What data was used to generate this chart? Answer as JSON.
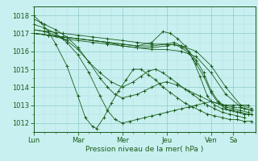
{
  "xlabel": "Pression niveau de la mer( hPa )",
  "bg_color": "#c8f0f0",
  "grid_color": "#a0d0d0",
  "line_color": "#1a5c1a",
  "ylim": [
    1011.5,
    1018.5
  ],
  "xlim": [
    0,
    120
  ],
  "yticks": [
    1012,
    1013,
    1014,
    1015,
    1016,
    1017,
    1018
  ],
  "day_labels": [
    "Lun",
    "Mar",
    "Mer",
    "Jeu",
    "Ven",
    "Sa"
  ],
  "day_positions": [
    0,
    24,
    48,
    72,
    96,
    108
  ],
  "series": [
    {
      "xs": [
        0,
        4,
        8,
        12,
        18,
        24,
        28,
        32,
        34,
        38,
        42,
        46,
        50,
        54,
        58,
        62,
        66,
        70,
        74,
        78,
        82,
        86,
        90,
        94,
        98,
        102,
        106,
        110,
        114,
        118
      ],
      "ys": [
        1018.0,
        1017.6,
        1017.1,
        1016.4,
        1015.2,
        1013.5,
        1012.3,
        1011.8,
        1011.7,
        1012.3,
        1013.1,
        1013.8,
        1014.4,
        1015.0,
        1015.0,
        1014.7,
        1014.4,
        1014.0,
        1013.7,
        1013.4,
        1013.1,
        1012.9,
        1012.7,
        1012.5,
        1012.4,
        1012.3,
        1012.2,
        1012.2,
        1012.1,
        1012.1
      ]
    },
    {
      "xs": [
        0,
        6,
        12,
        18,
        24,
        30,
        36,
        40,
        44,
        48,
        52,
        56,
        60,
        64,
        68,
        72,
        76,
        80,
        84,
        88,
        92,
        96,
        100,
        104,
        108,
        112,
        116
      ],
      "ys": [
        1017.5,
        1017.3,
        1017.0,
        1016.5,
        1015.8,
        1014.8,
        1013.5,
        1012.7,
        1012.2,
        1012.0,
        1012.1,
        1012.2,
        1012.3,
        1012.4,
        1012.5,
        1012.6,
        1012.7,
        1012.8,
        1012.9,
        1013.0,
        1013.1,
        1013.2,
        1013.1,
        1013.0,
        1013.0,
        1013.0,
        1013.0
      ]
    },
    {
      "xs": [
        0,
        6,
        12,
        18,
        24,
        30,
        36,
        40,
        44,
        48,
        52,
        56,
        60,
        64,
        68,
        72,
        78,
        84,
        90,
        96,
        102,
        108,
        114,
        118
      ],
      "ys": [
        1017.2,
        1017.1,
        1016.9,
        1016.6,
        1016.1,
        1015.4,
        1014.5,
        1014.0,
        1013.6,
        1013.4,
        1013.5,
        1013.6,
        1013.8,
        1014.0,
        1014.2,
        1014.3,
        1014.1,
        1013.8,
        1013.5,
        1013.2,
        1013.0,
        1012.9,
        1012.8,
        1012.7
      ]
    },
    {
      "xs": [
        0,
        8,
        16,
        24,
        32,
        40,
        48,
        56,
        64,
        72,
        76,
        80,
        84,
        88,
        92,
        96,
        100,
        104,
        108,
        112,
        116
      ],
      "ys": [
        1017.0,
        1016.9,
        1016.8,
        1016.7,
        1016.6,
        1016.5,
        1016.4,
        1016.3,
        1016.3,
        1016.4,
        1016.5,
        1016.3,
        1016.0,
        1015.5,
        1014.8,
        1013.8,
        1013.2,
        1012.9,
        1012.8,
        1012.7,
        1012.6
      ]
    },
    {
      "xs": [
        0,
        8,
        16,
        24,
        32,
        40,
        48,
        56,
        64,
        72,
        76,
        80,
        84,
        88,
        92,
        96,
        100,
        104,
        108,
        112,
        116
      ],
      "ys": [
        1017.0,
        1016.9,
        1016.7,
        1016.6,
        1016.5,
        1016.4,
        1016.3,
        1016.2,
        1016.2,
        1016.3,
        1016.4,
        1016.2,
        1015.9,
        1015.3,
        1014.6,
        1013.7,
        1013.1,
        1012.8,
        1012.7,
        1012.6,
        1012.5
      ]
    },
    {
      "xs": [
        0,
        8,
        16,
        24,
        32,
        40,
        48,
        56,
        64,
        70,
        74,
        78,
        82,
        86,
        90,
        94,
        98,
        102,
        106,
        110,
        114,
        118
      ],
      "ys": [
        1017.0,
        1016.9,
        1016.8,
        1016.7,
        1016.6,
        1016.5,
        1016.4,
        1016.3,
        1016.5,
        1017.1,
        1017.0,
        1016.7,
        1016.3,
        1015.6,
        1014.6,
        1013.5,
        1013.0,
        1012.8,
        1012.7,
        1012.6,
        1012.5,
        1012.5
      ]
    },
    {
      "xs": [
        0,
        6,
        12,
        18,
        24,
        30,
        36,
        42,
        48,
        54,
        58,
        62,
        66,
        70,
        74,
        78,
        82,
        86,
        90,
        94,
        98,
        102,
        106,
        110,
        114
      ],
      "ys": [
        1017.8,
        1017.5,
        1017.2,
        1016.8,
        1016.2,
        1015.4,
        1014.8,
        1014.3,
        1014.0,
        1014.3,
        1014.6,
        1014.9,
        1015.0,
        1014.8,
        1014.5,
        1014.2,
        1013.9,
        1013.6,
        1013.3,
        1013.0,
        1012.8,
        1012.6,
        1012.5,
        1012.4,
        1012.3
      ]
    },
    {
      "xs": [
        0,
        8,
        16,
        24,
        32,
        40,
        48,
        56,
        64,
        72,
        80,
        88,
        96,
        104,
        112,
        118
      ],
      "ys": [
        1017.2,
        1017.1,
        1017.0,
        1016.9,
        1016.8,
        1016.7,
        1016.6,
        1016.5,
        1016.4,
        1016.4,
        1016.3,
        1016.0,
        1015.2,
        1014.0,
        1013.0,
        1012.8
      ]
    },
    {
      "xs": [
        0,
        8,
        16,
        24,
        32,
        40,
        48,
        56,
        64,
        72,
        80,
        88,
        96,
        104,
        112,
        118
      ],
      "ys": [
        1017.0,
        1016.9,
        1016.8,
        1016.7,
        1016.6,
        1016.5,
        1016.3,
        1016.2,
        1016.1,
        1016.1,
        1016.0,
        1015.7,
        1014.8,
        1013.6,
        1012.9,
        1012.7
      ]
    }
  ]
}
